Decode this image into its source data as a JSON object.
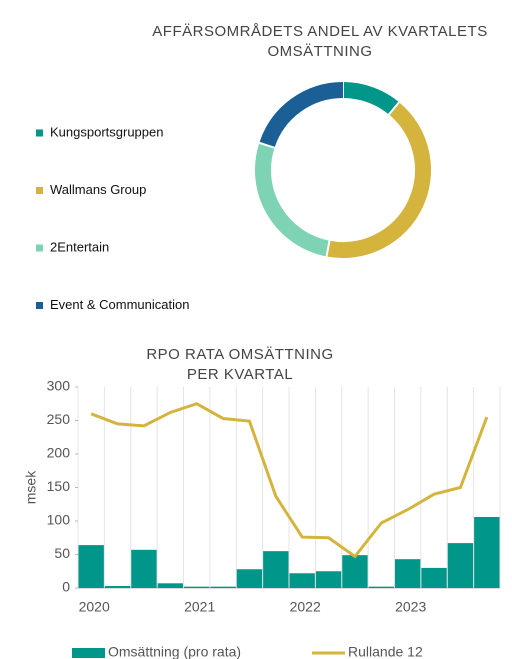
{
  "chart_data": [
    {
      "type": "donut",
      "title": "AFFÄRSOMRÅDETS ANDEL AV KVARTALETS OMSÄTTNING",
      "categories": [
        "Kungsportsgruppen",
        "Wallmans Group",
        "2Entertain",
        "Event & Communication"
      ],
      "values": [
        11,
        42,
        27,
        20
      ],
      "colors": [
        "#00968a",
        "#d4b43c",
        "#7fd3b5",
        "#1a6096"
      ]
    },
    {
      "type": "bar-line",
      "title": "RPO RATA OMSÄTTNING PER KVARTAL",
      "y_label": "msek",
      "categories": [
        "2020",
        null,
        null,
        null,
        "2021",
        null,
        null,
        null,
        "2022",
        null,
        null,
        null,
        "2023",
        null,
        null,
        null
      ],
      "series": [
        {
          "name": "Omsättning (pro rata)",
          "type": "bar",
          "color": "#00968a",
          "values": [
            64,
            3,
            57,
            7,
            2,
            2,
            28,
            55,
            22,
            25,
            49,
            2,
            43,
            30,
            67,
            106
          ]
        },
        {
          "name": "Rullande 12",
          "type": "line",
          "color": "#d4b43c",
          "values": [
            260,
            245,
            242,
            262,
            275,
            253,
            249,
            137,
            76,
            75,
            47,
            97,
            117,
            140,
            150,
            255
          ]
        }
      ],
      "ylim": [
        0,
        300
      ],
      "yticks": [
        0,
        50,
        100,
        150,
        200,
        250,
        300
      ]
    }
  ]
}
